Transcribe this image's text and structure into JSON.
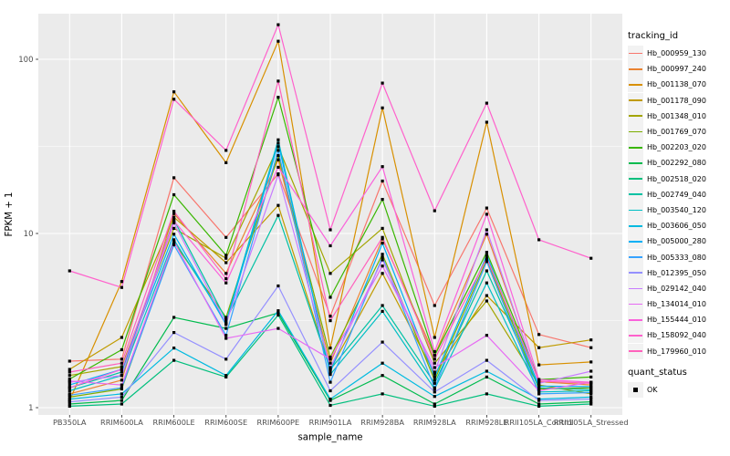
{
  "chart_data": {
    "type": "line",
    "title": "",
    "x_axis": {
      "title": "sample_name",
      "categories": [
        "PB350LA",
        "RRIM600LA",
        "RRIM600LE",
        "RRIM600SE",
        "RRIM600PE",
        "RRIM901LA",
        "RRIM928BA",
        "RRIM928LA",
        "RRIM928LE",
        "RRII105LA_Control",
        "RRII105LA_Stressed"
      ]
    },
    "y_axis": {
      "title": "FPKM + 1",
      "scale": "log10",
      "ticks": [
        1,
        10,
        100
      ],
      "minor_gridlines": [
        3.1623,
        31.623
      ],
      "ylim": [
        0.91,
        182
      ]
    },
    "panel": {
      "bg_color": "#EBEBEB",
      "grid_color": "#FFFFFF",
      "tick_label_color": "#4D4D4D",
      "axis_title_color": "#000000",
      "point_color": "#000000"
    },
    "legend": {
      "tracking_title": "tracking_id",
      "quant_title": "quant_status",
      "quant_items": [
        {
          "label": "OK",
          "marker": "black-square"
        }
      ],
      "position": "right"
    },
    "series": [
      {
        "name": "Hb_000959_130",
        "color": "#F8766D",
        "values": [
          1.85,
          1.9,
          20.9,
          9.5,
          22.0,
          3.35,
          20.0,
          3.86,
          14.0,
          2.63,
          2.21
        ]
      },
      {
        "name": "Hb_000997_240",
        "color": "#EA8331",
        "values": [
          1.2,
          1.44,
          13.0,
          5.9,
          26.5,
          1.8,
          9.3,
          2.0,
          9.9,
          1.41,
          1.35
        ]
      },
      {
        "name": "Hb_001138_070",
        "color": "#D89000",
        "values": [
          1.1,
          5.3,
          65.0,
          25.5,
          127.0,
          2.2,
          52.6,
          2.53,
          43.5,
          1.76,
          1.83
        ]
      },
      {
        "name": "Hb_001178_090",
        "color": "#C09B00",
        "values": [
          1.66,
          2.53,
          12.4,
          6.8,
          14.5,
          1.66,
          5.9,
          1.56,
          4.4,
          2.21,
          2.45
        ]
      },
      {
        "name": "Hb_001348_010",
        "color": "#A3A500",
        "values": [
          1.53,
          1.72,
          10.7,
          7.2,
          31.5,
          5.9,
          10.7,
          1.8,
          4.1,
          1.35,
          1.2
        ]
      },
      {
        "name": "Hb_001769_070",
        "color": "#7CAE00",
        "values": [
          1.15,
          1.28,
          8.9,
          3.3,
          28.0,
          1.95,
          7.6,
          1.44,
          7.1,
          1.28,
          1.3
        ]
      },
      {
        "name": "Hb_002203_020",
        "color": "#39B600",
        "values": [
          1.46,
          2.15,
          16.7,
          7.5,
          60.5,
          4.3,
          15.7,
          1.99,
          7.8,
          1.45,
          1.5
        ]
      },
      {
        "name": "Hb_002292_080",
        "color": "#00BB4E",
        "values": [
          1.05,
          1.1,
          3.3,
          2.85,
          3.5,
          1.1,
          1.53,
          1.05,
          1.5,
          1.05,
          1.08
        ]
      },
      {
        "name": "Hb_002518_020",
        "color": "#00BF7D",
        "values": [
          1.02,
          1.05,
          1.87,
          1.5,
          3.4,
          1.03,
          1.2,
          1.02,
          1.2,
          1.02,
          1.05
        ]
      },
      {
        "name": "Hb_002749_040",
        "color": "#00C1A3",
        "values": [
          1.3,
          1.6,
          12.0,
          3.2,
          12.7,
          1.66,
          3.86,
          1.38,
          6.1,
          1.3,
          1.27
        ]
      },
      {
        "name": "Hb_003540_120",
        "color": "#00BFC4",
        "values": [
          1.25,
          1.53,
          9.2,
          3.1,
          34.5,
          1.55,
          3.57,
          1.28,
          5.2,
          1.23,
          1.25
        ]
      },
      {
        "name": "Hb_003606_050",
        "color": "#00BAE0",
        "values": [
          1.12,
          1.2,
          2.2,
          1.53,
          3.6,
          1.12,
          1.8,
          1.16,
          1.62,
          1.12,
          1.15
        ]
      },
      {
        "name": "Hb_005000_280",
        "color": "#00B0F6",
        "values": [
          1.35,
          1.66,
          9.9,
          3.0,
          33.0,
          1.6,
          8.8,
          1.5,
          7.5,
          1.33,
          1.32
        ]
      },
      {
        "name": "Hb_005333_080",
        "color": "#35A2FF",
        "values": [
          1.18,
          1.3,
          8.6,
          2.6,
          30.0,
          1.4,
          7.3,
          1.3,
          6.9,
          1.2,
          1.22
        ]
      },
      {
        "name": "Hb_012395_050",
        "color": "#9590FF",
        "values": [
          1.08,
          1.15,
          2.7,
          1.9,
          5.0,
          1.25,
          2.38,
          1.23,
          1.87,
          1.1,
          1.12
        ]
      },
      {
        "name": "Hb_029142_040",
        "color": "#C77CFF",
        "values": [
          1.4,
          1.53,
          11.5,
          3.05,
          21.7,
          1.7,
          7.05,
          1.6,
          10.5,
          1.38,
          1.62
        ]
      },
      {
        "name": "Hb_134014_010",
        "color": "#E76BF3",
        "values": [
          1.42,
          1.35,
          9.0,
          2.5,
          2.85,
          1.9,
          6.5,
          1.7,
          2.6,
          1.25,
          1.4
        ]
      },
      {
        "name": "Hb_155444_010",
        "color": "#FA62DB",
        "values": [
          1.3,
          1.66,
          11.8,
          5.2,
          24.0,
          8.5,
          24.2,
          2.1,
          12.9,
          1.45,
          1.4
        ]
      },
      {
        "name": "Hb_158092_040",
        "color": "#FF61CC",
        "values": [
          6.1,
          4.9,
          59.0,
          30.0,
          158.0,
          10.5,
          73.0,
          13.5,
          56.0,
          9.2,
          7.2
        ]
      },
      {
        "name": "Hb_179960_010",
        "color": "#FF62BC",
        "values": [
          1.6,
          1.8,
          13.4,
          5.5,
          75.0,
          3.16,
          9.5,
          1.9,
          7.2,
          1.42,
          1.38
        ]
      }
    ]
  }
}
